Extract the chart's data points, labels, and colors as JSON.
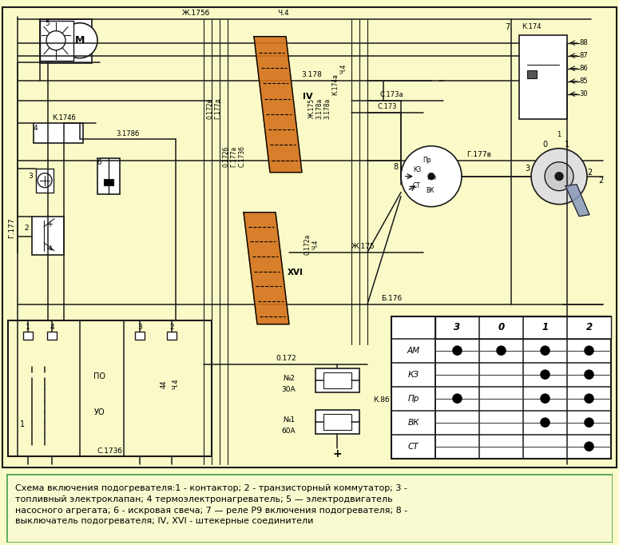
{
  "bg_color": "#FAFAC8",
  "caption_bg": "#FAFAD0",
  "caption_border": "#55AA55",
  "wc": "#1a1a1a",
  "orange": "#D4721A",
  "orange2": "#E08830",
  "light_blue": "#AABBDD",
  "table_rows": [
    "АМ",
    "КЗ",
    "Пр",
    "ВК",
    "СТ"
  ],
  "table_cols": [
    "3",
    "0",
    "1",
    "2"
  ],
  "dot_data": {
    "АМ": [
      "3",
      "0",
      "1",
      "2"
    ],
    "КЗ": [
      "1",
      "2"
    ],
    "Пр": [
      "3",
      "1",
      "2"
    ],
    "ВК": [
      "1",
      "2"
    ],
    "СТ": [
      "2"
    ]
  },
  "caption": "Схема включения подогревателя:1 - контактор; 2 - транзисторный коммутатор; 3 -\nтопливный электроклапан; 4 термоэлектронагреватель; 5 — электродвигатель\nнасосного агрегата; 6 - искровая свеча; 7 — реле Р9 включения подогревателя; 8 -\nвыключатель подогревателя; IV, XVI - штекерные соединители"
}
